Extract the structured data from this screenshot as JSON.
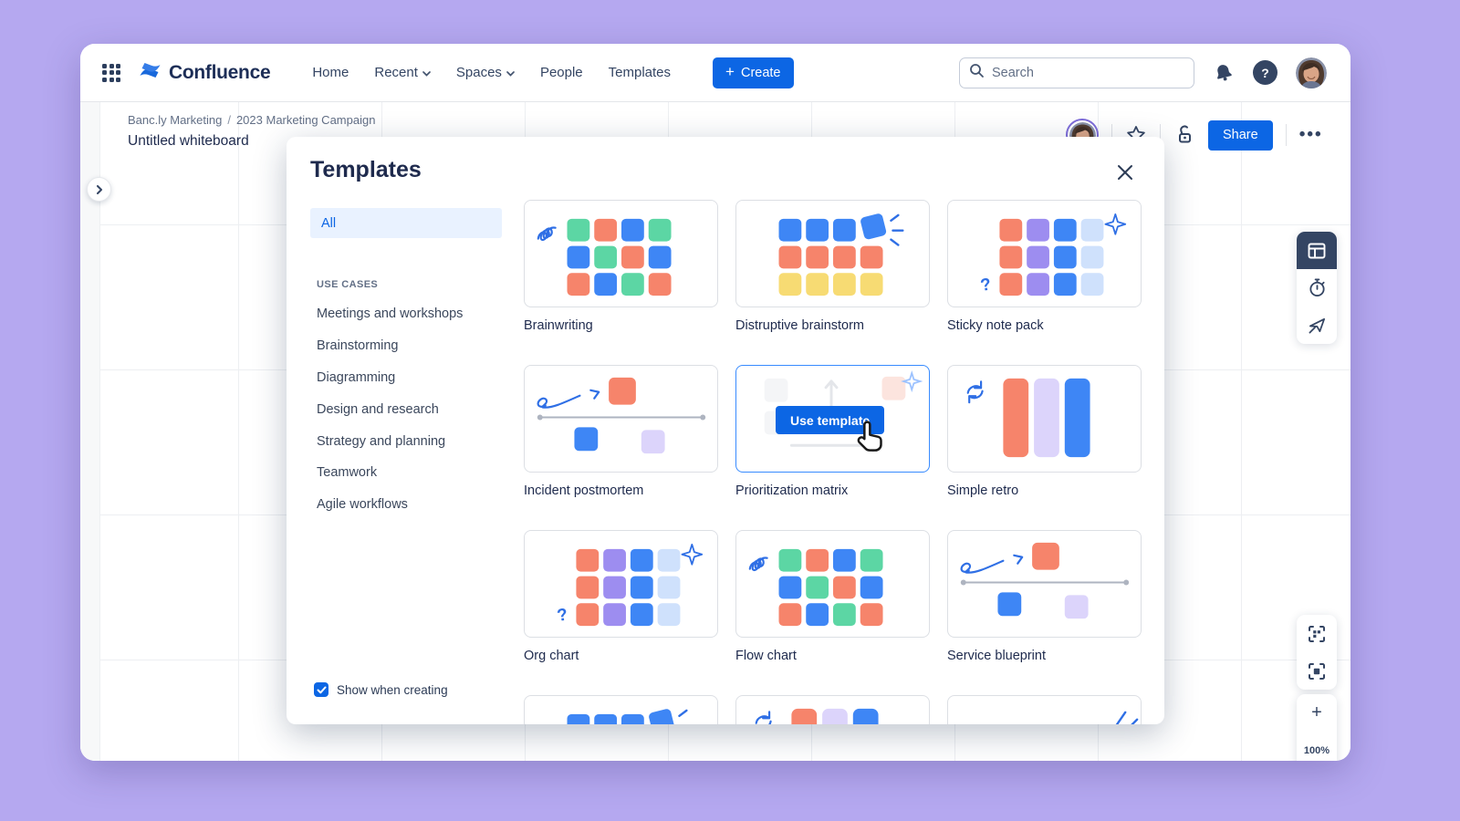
{
  "colors": {
    "accent": "#0C66E4",
    "navy": "#1e2a4d",
    "lavender_background": "#b5a8f0",
    "doodle_blue": "#2F6FE5",
    "square_blue": "#3E86F5",
    "square_salmon": "#F6846B",
    "square_green": "#5CD6A4",
    "square_yellow": "#F7DB73",
    "square_purple": "#9D8DF0",
    "square_light_purple": "#DCD4FB",
    "square_pale_blue": "#CFE1FC",
    "selected_pill_bg": "#E9F2FF"
  },
  "navbar": {
    "product": "Confluence",
    "items": [
      {
        "label": "Home",
        "dropdown": false
      },
      {
        "label": "Recent",
        "dropdown": true
      },
      {
        "label": "Spaces",
        "dropdown": true
      },
      {
        "label": "People",
        "dropdown": false
      },
      {
        "label": "Templates",
        "dropdown": false
      }
    ],
    "create_label": "Create",
    "search_placeholder": "Search"
  },
  "board": {
    "breadcrumb": [
      "Banc.ly Marketing",
      "2023 Marketing Campaign"
    ],
    "title": "Untitled whiteboard",
    "share_label": "Share",
    "more_label": "•••",
    "zoom_level": "100%"
  },
  "modal": {
    "title": "Templates",
    "sidebar": {
      "all_label": "All",
      "section_label": "USE CASES",
      "items": [
        "Meetings and workshops",
        "Brainstorming",
        "Diagramming",
        "Design and research",
        "Strategy and planning",
        "Teamwork",
        "Agile workflows"
      ]
    },
    "use_template_label": "Use template",
    "show_when_creating_label": "Show when creating",
    "show_when_creating_checked": true,
    "cards": [
      {
        "label": "Brainwriting",
        "thumb": "grid-mixed"
      },
      {
        "label": "Distruptive brainstorm",
        "thumb": "grid-disruptive"
      },
      {
        "label": "Sticky note pack",
        "thumb": "grid-columns"
      },
      {
        "label": "Incident postmortem",
        "thumb": "timeline"
      },
      {
        "label": "Prioritization matrix",
        "thumb": "matrix-faded",
        "hovered": true
      },
      {
        "label": "Simple retro",
        "thumb": "retro"
      },
      {
        "label": "Org chart",
        "thumb": "grid-columns"
      },
      {
        "label": "Flow chart",
        "thumb": "grid-mixed"
      },
      {
        "label": "Service blueprint",
        "thumb": "timeline"
      }
    ],
    "partial_cards": [
      {
        "thumb": "grid-disruptive"
      },
      {
        "thumb": "retro"
      },
      {
        "thumb": "burst-partial"
      }
    ]
  }
}
